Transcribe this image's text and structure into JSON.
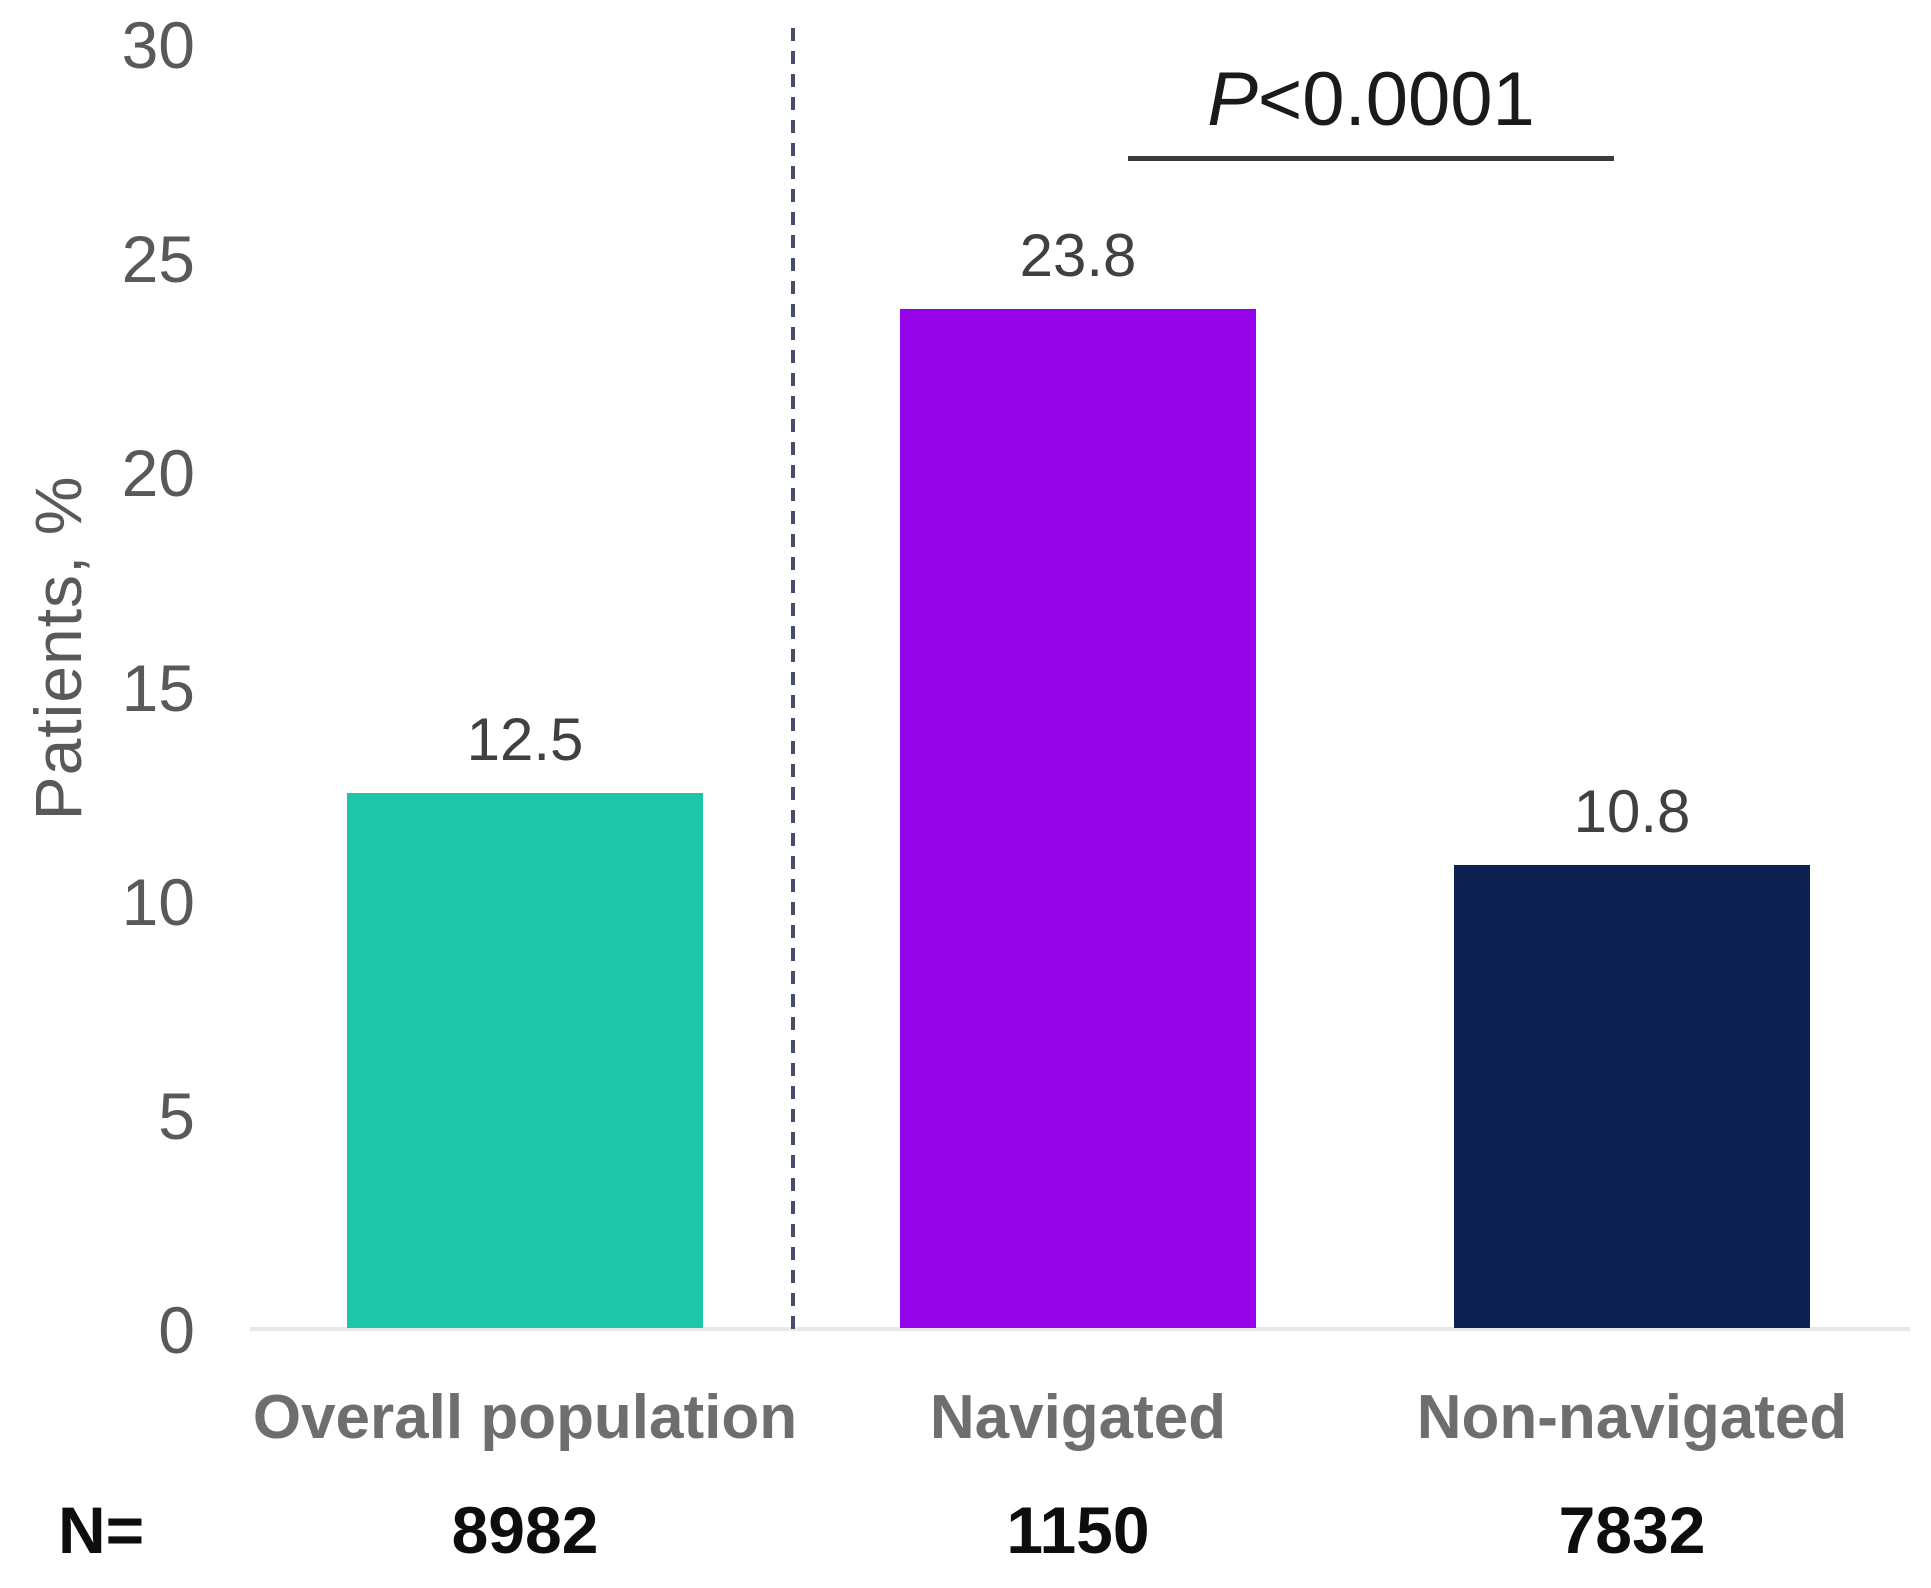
{
  "chart_data": {
    "type": "bar",
    "title": "",
    "ylabel": "Patients, %",
    "ylim": [
      0,
      30
    ],
    "yticks": [
      30,
      25,
      20,
      15,
      10,
      5,
      0
    ],
    "categories": [
      "Overall population",
      "Navigated",
      "Non-navigated"
    ],
    "values": [
      12.5,
      23.8,
      10.8
    ],
    "bar_colors": [
      "#1ec5a6",
      "#9503e8",
      "#0d2150"
    ],
    "n_row": {
      "label": "N=",
      "values": [
        8982,
        1150,
        7832
      ]
    },
    "annotation": {
      "p_italic": "P",
      "p_rest": "<0.0001"
    },
    "style": {
      "axis_line_color": "#e8e8e8",
      "divider_color": "#44506b",
      "tick_label_color": "#595959",
      "grid": false,
      "legend": "none"
    }
  }
}
